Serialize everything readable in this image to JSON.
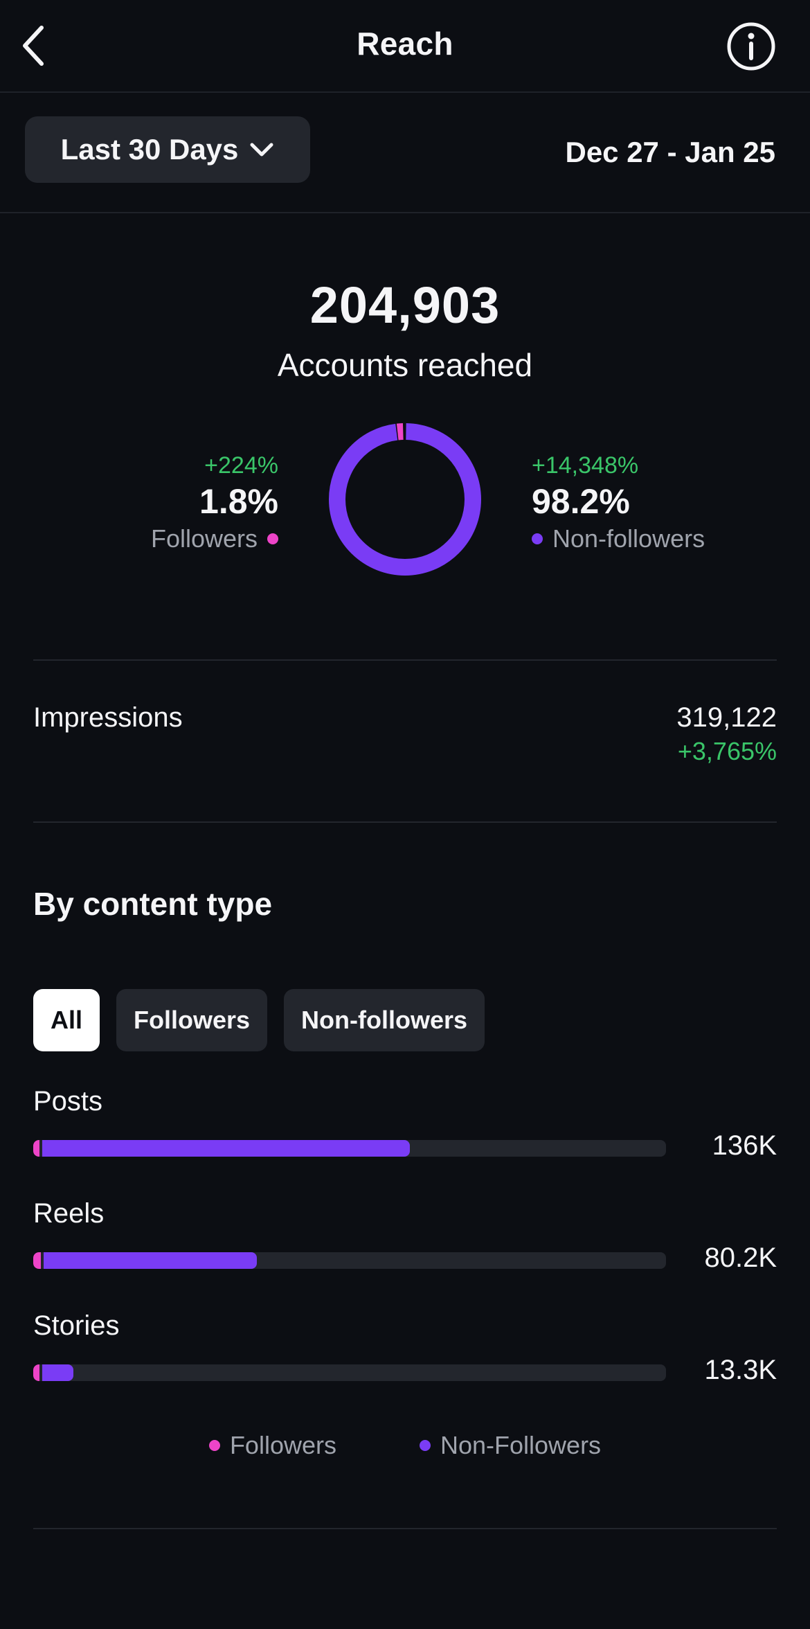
{
  "header": {
    "title": "Reach",
    "back_icon": "chevron-left-icon",
    "info_icon": "info-icon"
  },
  "range": {
    "label": "Last 30 Days",
    "dropdown_icon": "chevron-down-icon",
    "dates": "Dec 27 - Jan 25"
  },
  "summary": {
    "accounts_reached": "204,903",
    "accounts_label": "Accounts reached",
    "followers": {
      "change": "+224%",
      "percent": "1.8%",
      "label": "Followers",
      "color": "#ee44c8",
      "share": 1.8
    },
    "non_followers": {
      "change": "+14,348%",
      "percent": "98.2%",
      "label": "Non-followers",
      "color": "#7a3cf5",
      "share": 98.2
    }
  },
  "impressions": {
    "label": "Impressions",
    "value": "319,122",
    "change": "+3,765%"
  },
  "content_type": {
    "title": "By content type",
    "filters": [
      "All",
      "Followers",
      "Non-followers"
    ],
    "active_filter": "All",
    "items": [
      {
        "label": "Posts",
        "value": "136K",
        "fill_fraction": 0.595,
        "followers_fraction": 0.01
      },
      {
        "label": "Reels",
        "value": "80.2K",
        "fill_fraction": 0.353,
        "followers_fraction": 0.012
      },
      {
        "label": "Stories",
        "value": "13.3K",
        "fill_fraction": 0.064,
        "followers_fraction": 0.01
      }
    ],
    "legend": [
      {
        "label": "Followers",
        "color": "#ee44c8"
      },
      {
        "label": "Non-Followers",
        "color": "#7a3cf5"
      }
    ]
  },
  "colors": {
    "background": "#0c0e13",
    "positive": "#3ac569",
    "followers": "#ee44c8",
    "non_followers": "#7a3cf5",
    "surface": "#23262d"
  }
}
